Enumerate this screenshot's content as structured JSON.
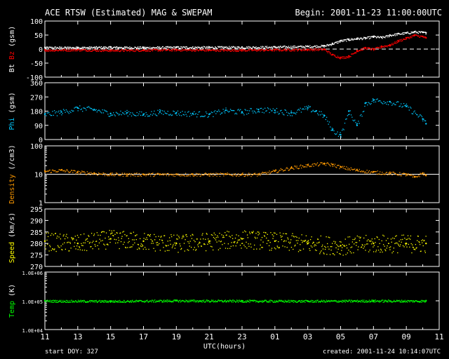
{
  "header": {
    "title": "ACE RTSW (Estimated) MAG & SWEPAM",
    "begin": "Begin: 2001-11-23 11:00:00UTC",
    "start_doy": "start DOY: 327",
    "created": "created: 2001-11-24 10:14:07UTC"
  },
  "colors": {
    "background": "#000000",
    "bt": "#ffffff",
    "bz": "#ff0000",
    "phi": "#00c8ff",
    "density": "#ff9900",
    "speed": "#ffff00",
    "temp": "#00ff00"
  },
  "chart_data": [
    {
      "type": "scatter",
      "panel": "mag",
      "ylabel_parts": [
        {
          "text": "Bt",
          "color": "#ffffff"
        },
        {
          "text": " Bz",
          "color": "#ff0000"
        },
        {
          "text": " (gsm)",
          "color": "#ffffff"
        }
      ],
      "ylim": [
        -100,
        100
      ],
      "yticks": [
        "100",
        "50",
        "0",
        "-50",
        "-100"
      ],
      "yticks_values": [
        100,
        50,
        0,
        -50,
        -100
      ],
      "reference_line": 0,
      "series": [
        {
          "name": "Bt",
          "color": "#ffffff",
          "x": [
            0,
            2,
            4,
            6,
            8,
            10,
            12,
            14,
            16,
            17,
            17.5,
            18,
            18.5,
            19,
            19.5,
            20,
            20.5,
            21,
            21.5,
            22,
            22.5,
            23,
            23.2
          ],
          "y": [
            6,
            6,
            7,
            6,
            7,
            7,
            7,
            8,
            10,
            12,
            20,
            30,
            35,
            38,
            40,
            45,
            42,
            50,
            55,
            58,
            62,
            60,
            58
          ]
        },
        {
          "name": "Bz",
          "color": "#ff0000",
          "x": [
            0,
            2,
            4,
            6,
            8,
            10,
            12,
            14,
            16,
            17,
            17.5,
            18,
            18.5,
            19,
            19.5,
            20,
            20.5,
            21,
            21.5,
            22,
            22.5,
            23,
            23.2
          ],
          "y": [
            -3,
            -2,
            -4,
            -3,
            -2,
            -3,
            -3,
            -2,
            -1,
            0,
            -20,
            -30,
            -25,
            -5,
            5,
            0,
            10,
            15,
            30,
            40,
            50,
            45,
            40
          ]
        }
      ]
    },
    {
      "type": "scatter",
      "panel": "phi",
      "ylabel_parts": [
        {
          "text": "Phi",
          "color": "#00c8ff"
        },
        {
          "text": " (gsm)",
          "color": "#ffffff"
        }
      ],
      "ylim": [
        0,
        360
      ],
      "yticks": [
        "360",
        "270",
        "180",
        "90",
        "0"
      ],
      "yticks_values": [
        360,
        270,
        180,
        90,
        0
      ],
      "series": [
        {
          "name": "Phi",
          "color": "#00c8ff",
          "x": [
            0,
            1,
            2,
            3,
            4,
            5,
            6,
            7,
            8,
            9,
            10,
            11,
            12,
            13,
            14,
            15,
            16,
            16.5,
            17,
            17.5,
            18,
            18.5,
            19,
            19.5,
            20,
            21,
            22,
            23,
            23.2
          ],
          "y": [
            160,
            175,
            200,
            190,
            165,
            170,
            160,
            175,
            170,
            165,
            160,
            185,
            175,
            190,
            185,
            170,
            200,
            180,
            150,
            60,
            30,
            180,
            90,
            230,
            250,
            240,
            210,
            130,
            100
          ]
        }
      ]
    },
    {
      "type": "scatter",
      "panel": "density",
      "ylabel_parts": [
        {
          "text": "Density",
          "color": "#ff9900"
        },
        {
          "text": " (/cm3)",
          "color": "#ffffff"
        }
      ],
      "yscale": "log",
      "ylim": [
        1,
        100
      ],
      "yticks": [
        "100",
        "10",
        "1"
      ],
      "yticks_values": [
        100,
        10,
        1
      ],
      "reference_line": 10,
      "series": [
        {
          "name": "Density",
          "color": "#ff9900",
          "x": [
            0,
            1,
            2,
            3,
            4,
            5,
            6,
            7,
            8,
            9,
            10,
            11,
            12,
            13,
            14,
            15,
            16,
            17,
            17.5,
            18,
            19,
            20,
            21,
            22,
            22.5,
            23,
            23.2
          ],
          "y": [
            13,
            14,
            12,
            11,
            10,
            10,
            10,
            10,
            10,
            10,
            10,
            10,
            10,
            10,
            13,
            17,
            21,
            24,
            22,
            18,
            14,
            12,
            11,
            10,
            8,
            11,
            9
          ]
        }
      ]
    },
    {
      "type": "scatter",
      "panel": "speed",
      "ylabel_parts": [
        {
          "text": "Speed",
          "color": "#ffff00"
        },
        {
          "text": " (km/s)",
          "color": "#ffffff"
        }
      ],
      "ylim": [
        270,
        295
      ],
      "yticks": [
        "295",
        "290",
        "285",
        "280",
        "275",
        "270"
      ],
      "yticks_values": [
        295,
        290,
        285,
        280,
        275,
        270
      ],
      "series": [
        {
          "name": "Speed",
          "color": "#ffff00",
          "x": [
            0,
            2,
            4,
            6,
            8,
            10,
            12,
            14,
            16,
            18,
            20,
            22,
            23.2
          ],
          "y": [
            281,
            280,
            282,
            281,
            280,
            281,
            282,
            281,
            280,
            279,
            280,
            280,
            280
          ]
        }
      ]
    },
    {
      "type": "scatter",
      "panel": "temp",
      "ylabel_parts": [
        {
          "text": "Temp",
          "color": "#00ff00"
        },
        {
          "text": " (K)",
          "color": "#ffffff"
        }
      ],
      "yscale": "log",
      "ylim": [
        10000,
        1000000
      ],
      "yticks": [
        "1.0E+06",
        "1.0E+05",
        "1.0E+04"
      ],
      "yticks_values": [
        1000000,
        100000,
        10000
      ],
      "series": [
        {
          "name": "Temp",
          "color": "#00ff00",
          "x": [
            0,
            4,
            8,
            12,
            16,
            20,
            23.2
          ],
          "y": [
            100000,
            98000,
            102000,
            100000,
            99000,
            101000,
            100000
          ]
        }
      ]
    }
  ],
  "x_axis": {
    "label": "UTC(hours)",
    "xlim": [
      0,
      24
    ],
    "ticks": [
      "11",
      "13",
      "15",
      "17",
      "19",
      "21",
      "23",
      "01",
      "03",
      "05",
      "07",
      "09",
      "11"
    ]
  }
}
